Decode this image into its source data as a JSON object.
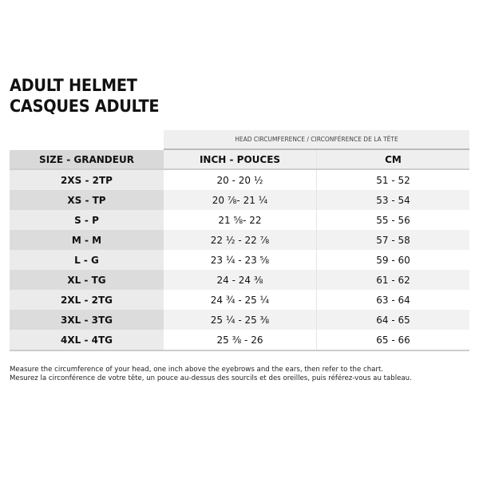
{
  "title": {
    "line1": "ADULT HELMET",
    "line2": "CASQUES ADULTE"
  },
  "table": {
    "group_header": "HEAD CIRCUMFERENCE / CIRCONFÉRENCE DE LA TÊTE",
    "columns": [
      "SIZE - GRANDEUR",
      "INCH - POUCES",
      "CM"
    ],
    "rows": [
      [
        "2XS - 2TP",
        "20 - 20 ½",
        "51 - 52"
      ],
      [
        "XS - TP",
        "20 ⅞- 21 ¼",
        "53 - 54"
      ],
      [
        "S - P",
        "21 ⅝- 22",
        "55 - 56"
      ],
      [
        "M - M",
        "22 ½ - 22 ⅞",
        "57 - 58"
      ],
      [
        "L - G",
        "23 ¼ - 23 ⅝",
        "59 - 60"
      ],
      [
        "XL - TG",
        "24 - 24 ⅜",
        "61 - 62"
      ],
      [
        "2XL - 2TG",
        "24 ¾ - 25 ¼",
        "63 - 64"
      ],
      [
        "3XL - 3TG",
        "25 ¼ - 25 ⅜",
        "64 - 65"
      ],
      [
        "4XL - 4TG",
        "25 ⅜ - 26",
        "65 - 66"
      ]
    ]
  },
  "note": {
    "en": "Measure the circumference of your head, one inch above the eyebrows and the ears, then refer to the chart.",
    "fr": "Mesurez la circonférence de votre tête, un pouce au-dessus des sourcils et des oreilles, puis référez-vous au tableau."
  }
}
